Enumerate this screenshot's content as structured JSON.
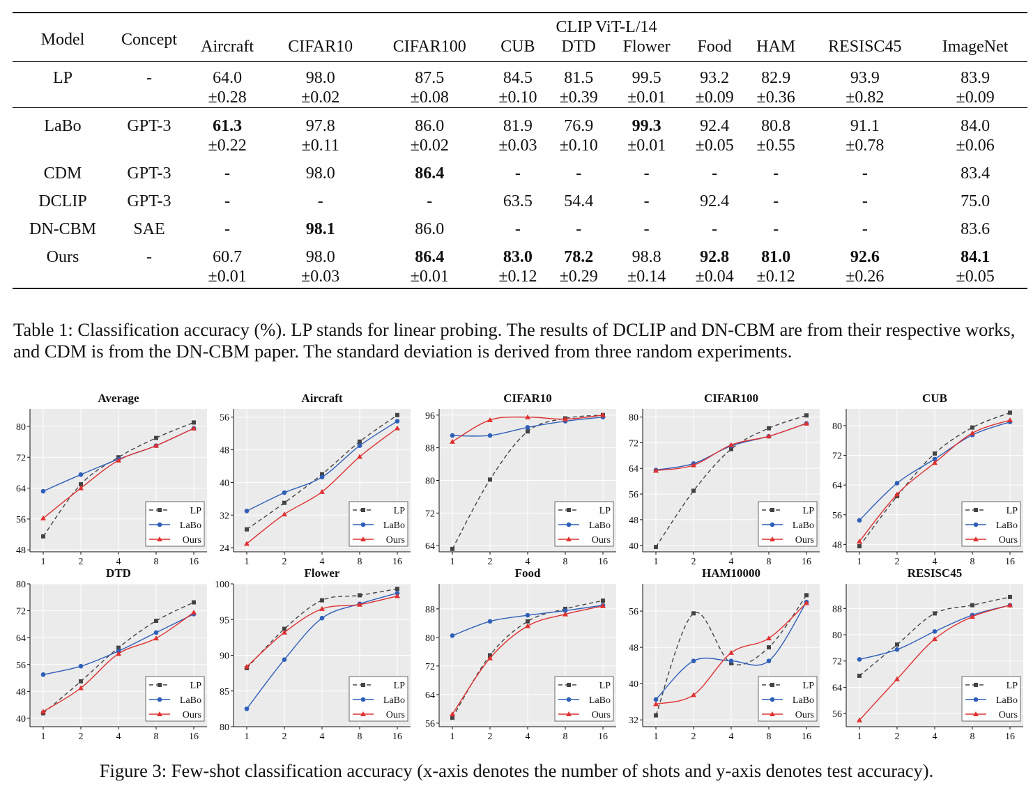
{
  "table": {
    "top_header": "CLIP ViT-L/14",
    "header_model": "Model",
    "header_concept": "Concept",
    "datasets": [
      "Aircraft",
      "CIFAR10",
      "CIFAR100",
      "CUB",
      "DTD",
      "Flower",
      "Food",
      "HAM",
      "RESISC45",
      "ImageNet"
    ],
    "rows": [
      {
        "model": "LP",
        "concept": "-",
        "cells": [
          [
            "64.0",
            "±0.28"
          ],
          [
            "98.0",
            "±0.02"
          ],
          [
            "87.5",
            "±0.08"
          ],
          [
            "84.5",
            "±0.10"
          ],
          [
            "81.5",
            "±0.39"
          ],
          [
            "99.5",
            "±0.01"
          ],
          [
            "93.2",
            "±0.09"
          ],
          [
            "82.9",
            "±0.36"
          ],
          [
            "93.9",
            "±0.82"
          ],
          [
            "83.9",
            "±0.09"
          ]
        ],
        "bold": []
      },
      {
        "model": "LaBo",
        "concept": "GPT-3",
        "cells": [
          [
            "61.3",
            "±0.22"
          ],
          [
            "97.8",
            "±0.11"
          ],
          [
            "86.0",
            "±0.02"
          ],
          [
            "81.9",
            "±0.03"
          ],
          [
            "76.9",
            "±0.10"
          ],
          [
            "99.3",
            "±0.01"
          ],
          [
            "92.4",
            "±0.05"
          ],
          [
            "80.8",
            "±0.55"
          ],
          [
            "91.1",
            "±0.78"
          ],
          [
            "84.0",
            "±0.06"
          ]
        ],
        "bold": [
          0,
          5
        ]
      },
      {
        "model": "CDM",
        "concept": "GPT-3",
        "cells": [
          [
            "-"
          ],
          [
            "98.0"
          ],
          [
            "86.4"
          ],
          [
            "-"
          ],
          [
            "-"
          ],
          [
            "-"
          ],
          [
            "-"
          ],
          [
            "-"
          ],
          [
            "-"
          ],
          [
            "83.4"
          ]
        ],
        "bold": [
          2
        ]
      },
      {
        "model": "DCLIP",
        "concept": "GPT-3",
        "cells": [
          [
            "-"
          ],
          [
            "-"
          ],
          [
            "-"
          ],
          [
            "63.5"
          ],
          [
            "54.4"
          ],
          [
            "-"
          ],
          [
            "92.4"
          ],
          [
            "-"
          ],
          [
            "-"
          ],
          [
            "75.0"
          ]
        ],
        "bold": []
      },
      {
        "model": "DN-CBM",
        "concept": "SAE",
        "cells": [
          [
            "-"
          ],
          [
            "98.1"
          ],
          [
            "86.0"
          ],
          [
            "-"
          ],
          [
            "-"
          ],
          [
            "-"
          ],
          [
            "-"
          ],
          [
            "-"
          ],
          [
            "-"
          ],
          [
            "83.6"
          ]
        ],
        "bold": [
          1
        ]
      },
      {
        "model": "Ours",
        "concept": "-",
        "cells": [
          [
            "60.7",
            "±0.01"
          ],
          [
            "98.0",
            "±0.03"
          ],
          [
            "86.4",
            "±0.01"
          ],
          [
            "83.0",
            "±0.12"
          ],
          [
            "78.2",
            "±0.29"
          ],
          [
            "98.8",
            "±0.14"
          ],
          [
            "92.8",
            "±0.04"
          ],
          [
            "81.0",
            "±0.12"
          ],
          [
            "92.6",
            "±0.26"
          ],
          [
            "84.1",
            "±0.05"
          ]
        ],
        "bold": [
          2,
          3,
          4,
          6,
          7,
          8,
          9
        ]
      }
    ]
  },
  "table_caption": "Table 1: Classification accuracy (%). LP stands for linear probing. The results of DCLIP and DN-CBM are from their respective works, and CDM is from the DN-CBM paper. The standard deviation is derived from three random experiments.",
  "figure_caption": "Figure 3: Few-shot classification accuracy (x-axis denotes the number of shots and y-axis denotes test accuracy).",
  "colors": {
    "LP": "#444444",
    "LaBo": "#2f5fb8",
    "Ours": "#e03030",
    "plot_bg": "#ebebeb",
    "grid": "#ffffff"
  },
  "chart_data": [
    {
      "type": "line",
      "title": "Average",
      "x": [
        "1",
        "2",
        "4",
        "8",
        "16"
      ],
      "yticks": [
        48,
        56,
        64,
        72,
        80
      ],
      "ylim": [
        47.5,
        84.5
      ],
      "legend": "bottom-right",
      "series": [
        {
          "name": "LP",
          "values": [
            51.5,
            65.0,
            72.0,
            77.0,
            81.0
          ]
        },
        {
          "name": "LaBo",
          "values": [
            63.2,
            67.5,
            71.5,
            75.0,
            79.5
          ]
        },
        {
          "name": "Ours",
          "values": [
            56.2,
            64.0,
            71.2,
            75.0,
            79.5
          ]
        }
      ]
    },
    {
      "type": "line",
      "title": "Aircraft",
      "x": [
        "1",
        "2",
        "4",
        "8",
        "16"
      ],
      "yticks": [
        24,
        32,
        40,
        48,
        56
      ],
      "ylim": [
        23.0,
        58.0
      ],
      "legend": "bottom-right",
      "series": [
        {
          "name": "LP",
          "values": [
            28.5,
            35.0,
            42.0,
            50.0,
            56.5
          ]
        },
        {
          "name": "LaBo",
          "values": [
            33.0,
            37.5,
            41.3,
            49.0,
            55.0
          ]
        },
        {
          "name": "Ours",
          "values": [
            25.0,
            32.2,
            37.7,
            46.3,
            53.3
          ]
        }
      ]
    },
    {
      "type": "line",
      "title": "CIFAR10",
      "x": [
        "1",
        "2",
        "4",
        "8",
        "16"
      ],
      "yticks": [
        64,
        72,
        80,
        88,
        96
      ],
      "ylim": [
        62.5,
        97.5
      ],
      "legend": "bottom-right",
      "series": [
        {
          "name": "LP",
          "values": [
            63.2,
            80.2,
            92.0,
            95.2,
            96.0
          ]
        },
        {
          "name": "LaBo",
          "values": [
            91.0,
            91.0,
            93.0,
            94.5,
            95.5
          ]
        },
        {
          "name": "Ours",
          "values": [
            89.5,
            94.8,
            95.5,
            95.0,
            96.0
          ]
        }
      ]
    },
    {
      "type": "line",
      "title": "CIFAR100",
      "x": [
        "1",
        "2",
        "4",
        "8",
        "16"
      ],
      "yticks": [
        40,
        48,
        56,
        64,
        72,
        80
      ],
      "ylim": [
        38.0,
        82.5
      ],
      "legend": "bottom-right",
      "series": [
        {
          "name": "LP",
          "values": [
            39.5,
            57.0,
            70.0,
            76.5,
            80.5
          ]
        },
        {
          "name": "LaBo",
          "values": [
            63.5,
            65.5,
            71.0,
            74.0,
            78.0
          ]
        },
        {
          "name": "Ours",
          "values": [
            63.3,
            65.0,
            71.3,
            74.0,
            78.0
          ]
        }
      ]
    },
    {
      "type": "line",
      "title": "CUB",
      "x": [
        "1",
        "2",
        "4",
        "8",
        "16"
      ],
      "yticks": [
        48,
        56,
        64,
        72,
        80
      ],
      "ylim": [
        46.0,
        84.5
      ],
      "legend": "bottom-right",
      "series": [
        {
          "name": "LP",
          "values": [
            47.5,
            61.0,
            72.5,
            79.5,
            83.5
          ]
        },
        {
          "name": "LaBo",
          "values": [
            54.5,
            64.5,
            71.0,
            77.5,
            81.0
          ]
        },
        {
          "name": "Ours",
          "values": [
            48.8,
            61.5,
            70.0,
            78.0,
            81.5
          ]
        }
      ]
    },
    {
      "type": "line",
      "title": "DTD",
      "x": [
        "1",
        "2",
        "4",
        "8",
        "16"
      ],
      "yticks": [
        40,
        48,
        56,
        64,
        72,
        80
      ],
      "ylim": [
        37.5,
        80.0
      ],
      "legend": "bottom-right",
      "series": [
        {
          "name": "LP",
          "values": [
            41.5,
            51.0,
            61.0,
            69.0,
            74.5
          ]
        },
        {
          "name": "LaBo",
          "values": [
            53.0,
            55.5,
            60.0,
            65.5,
            71.0
          ]
        },
        {
          "name": "Ours",
          "values": [
            42.0,
            49.0,
            59.2,
            63.8,
            71.5
          ]
        }
      ]
    },
    {
      "type": "line",
      "title": "Flower",
      "x": [
        "1",
        "2",
        "4",
        "8",
        "16"
      ],
      "yticks": [
        80,
        85,
        90,
        95,
        100
      ],
      "ylim": [
        80.0,
        100.0
      ],
      "legend": "bottom-right",
      "series": [
        {
          "name": "LP",
          "values": [
            88.2,
            93.7,
            97.7,
            98.4,
            99.3
          ]
        },
        {
          "name": "LaBo",
          "values": [
            82.5,
            89.4,
            95.2,
            97.2,
            98.7
          ]
        },
        {
          "name": "Ours",
          "values": [
            88.4,
            93.2,
            96.5,
            97.1,
            98.3
          ]
        }
      ]
    },
    {
      "type": "line",
      "title": "Food",
      "x": [
        "1",
        "2",
        "4",
        "8",
        "16"
      ],
      "yticks": [
        56,
        64,
        72,
        80,
        88
      ],
      "ylim": [
        55.0,
        95.0
      ],
      "legend": "bottom-right",
      "series": [
        {
          "name": "LP",
          "values": [
            57.5,
            75.0,
            84.5,
            88.0,
            90.3
          ]
        },
        {
          "name": "LaBo",
          "values": [
            80.5,
            84.5,
            86.2,
            87.5,
            89.0
          ]
        },
        {
          "name": "Ours",
          "values": [
            58.5,
            74.2,
            83.2,
            86.5,
            88.8
          ]
        }
      ]
    },
    {
      "type": "line",
      "title": "HAM10000",
      "x": [
        "1",
        "2",
        "4",
        "8",
        "16"
      ],
      "yticks": [
        32,
        40,
        48,
        56
      ],
      "ylim": [
        30.5,
        62.0
      ],
      "legend": "bottom-right",
      "series": [
        {
          "name": "LP",
          "values": [
            33.0,
            55.5,
            44.5,
            48.0,
            59.5
          ]
        },
        {
          "name": "LaBo",
          "values": [
            36.5,
            45.0,
            45.0,
            45.0,
            58.0
          ]
        },
        {
          "name": "Ours",
          "values": [
            35.5,
            37.5,
            46.8,
            50.0,
            57.8
          ]
        }
      ]
    },
    {
      "type": "line",
      "title": "RESISC45",
      "x": [
        "1",
        "2",
        "4",
        "8",
        "16"
      ],
      "yticks": [
        56,
        64,
        72,
        80,
        88
      ],
      "ylim": [
        52.0,
        95.5
      ],
      "legend": "bottom-right",
      "series": [
        {
          "name": "LP",
          "values": [
            67.5,
            77.0,
            86.5,
            89.0,
            91.5
          ]
        },
        {
          "name": "LaBo",
          "values": [
            72.5,
            75.5,
            81.0,
            86.0,
            89.0
          ]
        },
        {
          "name": "Ours",
          "values": [
            54.0,
            66.5,
            78.7,
            85.5,
            89.0
          ]
        }
      ]
    }
  ]
}
